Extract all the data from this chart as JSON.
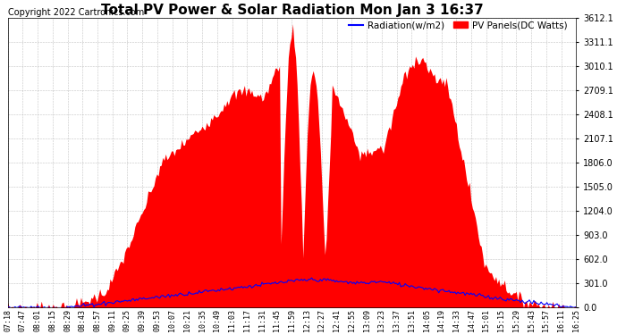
{
  "title": "Total PV Power & Solar Radiation Mon Jan 3 16:37",
  "copyright": "Copyright 2022 Cartronics.com",
  "legend_radiation": "Radiation(w/m2)",
  "legend_pv": "PV Panels(DC Watts)",
  "y_max": 3612.1,
  "y_min": 0.0,
  "y_ticks": [
    0.0,
    301.0,
    602.0,
    903.0,
    1204.0,
    1505.0,
    1806.0,
    2107.1,
    2408.1,
    2709.1,
    3010.1,
    3311.1,
    3612.1
  ],
  "color_pv": "#ff0000",
  "color_radiation": "#0000ff",
  "background_color": "#ffffff",
  "grid_color": "#cccccc",
  "title_fontsize": 11,
  "copyright_fontsize": 7,
  "legend_fontsize": 7.5,
  "x_tick_fontsize": 6,
  "y_tick_fontsize": 7,
  "x_tick_labels": [
    "07:18",
    "07:47",
    "08:01",
    "08:15",
    "08:29",
    "08:43",
    "08:57",
    "09:11",
    "09:25",
    "09:39",
    "09:53",
    "10:07",
    "10:21",
    "10:35",
    "10:49",
    "11:03",
    "11:17",
    "11:31",
    "11:45",
    "11:59",
    "12:13",
    "12:27",
    "12:41",
    "12:55",
    "13:09",
    "13:23",
    "13:37",
    "13:51",
    "14:05",
    "14:19",
    "14:33",
    "14:47",
    "15:01",
    "15:15",
    "15:29",
    "15:43",
    "15:57",
    "16:11",
    "16:25"
  ],
  "n_points": 390,
  "figwidth": 6.9,
  "figheight": 3.75,
  "dpi": 100
}
